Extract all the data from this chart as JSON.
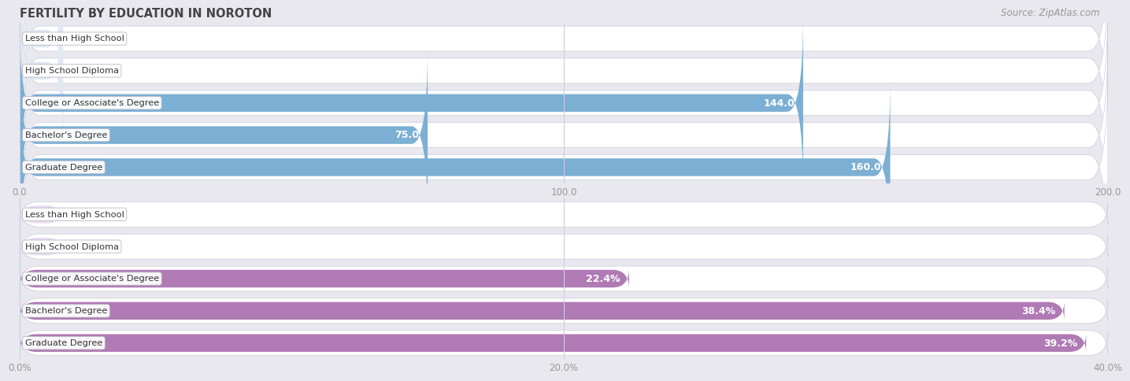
{
  "title": "FERTILITY BY EDUCATION IN NOROTON",
  "source": "Source: ZipAtlas.com",
  "top_chart": {
    "categories": [
      "Less than High School",
      "High School Diploma",
      "College or Associate's Degree",
      "Bachelor's Degree",
      "Graduate Degree"
    ],
    "values": [
      0.0,
      0.0,
      144.0,
      75.0,
      160.0
    ],
    "xlim": [
      0,
      200
    ],
    "xticks": [
      0.0,
      100.0,
      200.0
    ],
    "xtick_labels": [
      "0.0",
      "100.0",
      "200.0"
    ],
    "bar_color": "#7bafd4",
    "bar_bg_color": "#e2e8f0",
    "row_bg_color": "#f5f5fa",
    "label_inside_color": "#ffffff",
    "label_outside_color": "#666666"
  },
  "bottom_chart": {
    "categories": [
      "Less than High School",
      "High School Diploma",
      "College or Associate's Degree",
      "Bachelor's Degree",
      "Graduate Degree"
    ],
    "values": [
      0.0,
      0.0,
      22.4,
      38.4,
      39.2
    ],
    "xlim": [
      0,
      40
    ],
    "xticks": [
      0.0,
      20.0,
      40.0
    ],
    "xtick_labels": [
      "0.0%",
      "20.0%",
      "40.0%"
    ],
    "bar_color": "#b07ab5",
    "bar_bg_color": "#e8ddef",
    "row_bg_color": "#f5f5fa",
    "label_inside_color": "#ffffff",
    "label_outside_color": "#666666"
  },
  "fig_bg_color": "#e8e8ee",
  "title_color": "#444444",
  "source_color": "#999999",
  "tick_color": "#999999",
  "grid_color": "#ccccdd",
  "figsize": [
    14.06,
    4.75
  ],
  "dpi": 100
}
